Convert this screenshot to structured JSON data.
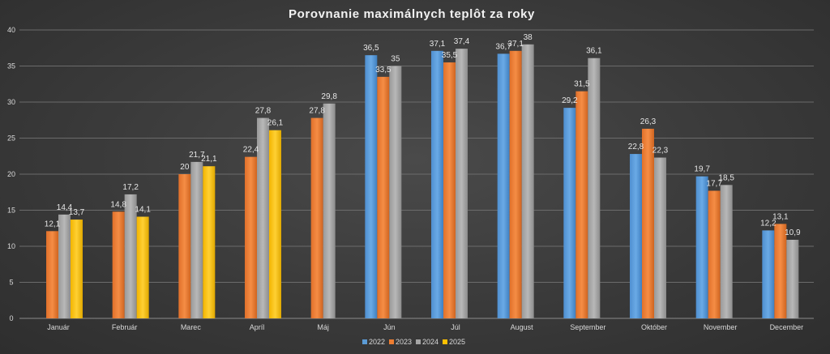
{
  "chart_data": {
    "type": "bar",
    "title": "Porovnanie maximálnych teplôt za roky",
    "xlabel": "",
    "ylabel": "",
    "ylim": [
      0,
      40
    ],
    "yticks": [
      0,
      5,
      10,
      15,
      20,
      25,
      30,
      35,
      40
    ],
    "grid": true,
    "legend_position": "bottom",
    "categories": [
      "Január",
      "Február",
      "Marec",
      "Apríl",
      "Máj",
      "Jún",
      "Júl",
      "August",
      "September",
      "Október",
      "November",
      "December"
    ],
    "series": [
      {
        "name": "2022",
        "color": "#5b9bd5",
        "values": [
          null,
          null,
          null,
          null,
          null,
          36.5,
          37.1,
          36.7,
          29.2,
          22.8,
          19.7,
          12.2
        ],
        "labels": [
          "",
          "",
          "",
          "",
          "",
          "36,5",
          "37,1",
          "36,7",
          "29,2",
          "22,8",
          "19,7",
          "12,2"
        ]
      },
      {
        "name": "2023",
        "color": "#ed7d31",
        "values": [
          12.1,
          14.8,
          20,
          22.4,
          27.8,
          33.5,
          35.5,
          37.1,
          31.5,
          26.3,
          17.7,
          13.1
        ],
        "labels": [
          "12,1",
          "14,8",
          "20",
          "22,4",
          "27,8",
          "33,5",
          "35,5",
          "37,1",
          "31,5",
          "26,3",
          "17,7",
          "13,1"
        ]
      },
      {
        "name": "2024",
        "color": "#a5a5a5",
        "values": [
          14.4,
          17.2,
          21.7,
          27.8,
          29.8,
          35,
          37.4,
          38,
          36.1,
          22.3,
          18.5,
          10.9
        ],
        "labels": [
          "14,4",
          "17,2",
          "21,7",
          "27,8",
          "29,8",
          "35",
          "37,4",
          "38",
          "36,1",
          "22,3",
          "18,5",
          "10,9"
        ]
      },
      {
        "name": "2025",
        "color": "#ffc000",
        "values": [
          13.7,
          14.1,
          21.1,
          26.1,
          null,
          null,
          null,
          null,
          null,
          null,
          null,
          null
        ],
        "labels": [
          "13,7",
          "14,1",
          "21,1",
          "26,1",
          "",
          "",
          "",
          "",
          "",
          "",
          "",
          ""
        ]
      }
    ]
  }
}
